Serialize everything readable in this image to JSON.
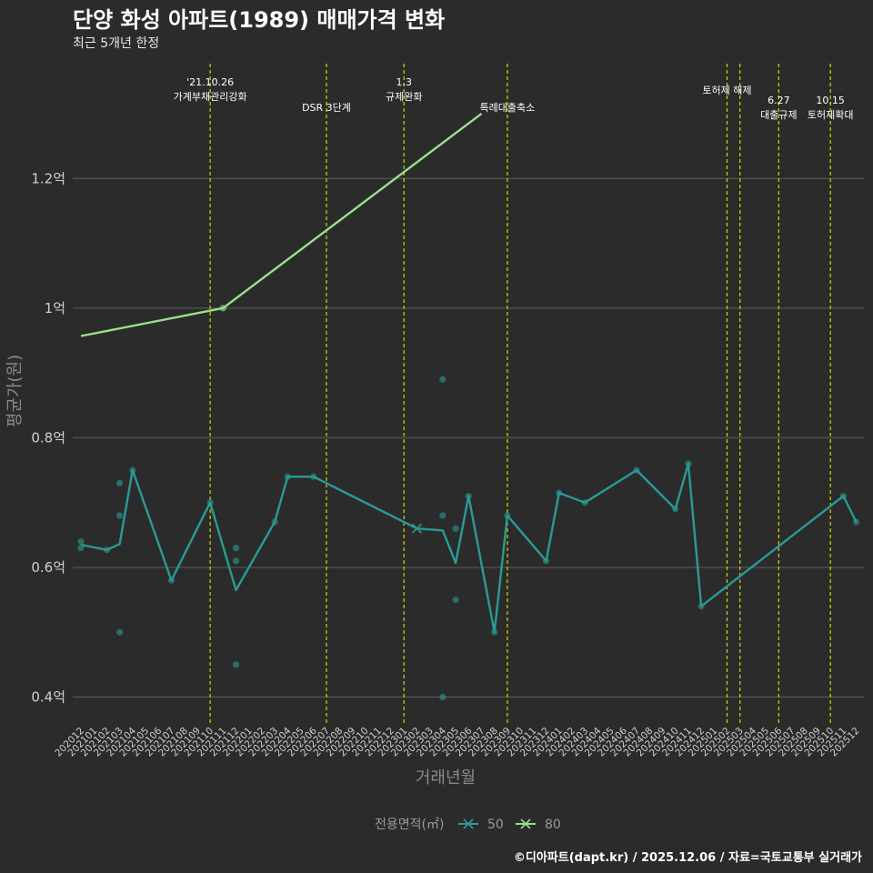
{
  "chart_data": {
    "type": "line",
    "title": "단양 화성 아파트(1989) 매매가격 변화",
    "subtitle": "최근 5개년 한정",
    "xlabel": "거래년월",
    "ylabel": "평균가(원)",
    "ylim": [
      0.36,
      1.38
    ],
    "yticks": [
      {
        "value": 0.4,
        "label": "0.4억"
      },
      {
        "value": 0.6,
        "label": "0.6억"
      },
      {
        "value": 0.8,
        "label": "0.8억"
      },
      {
        "value": 1.0,
        "label": "1억"
      },
      {
        "value": 1.2,
        "label": "1.2억"
      }
    ],
    "categories": [
      "202012",
      "202101",
      "202102",
      "202103",
      "202104",
      "202105",
      "202106",
      "202107",
      "202108",
      "202109",
      "202110",
      "202111",
      "202112",
      "202201",
      "202202",
      "202203",
      "202204",
      "202205",
      "202206",
      "202207",
      "202208",
      "202209",
      "202210",
      "202211",
      "202212",
      "202301",
      "202302",
      "202303",
      "202304",
      "202305",
      "202306",
      "202307",
      "202308",
      "202309",
      "202310",
      "202311",
      "202312",
      "202401",
      "202402",
      "202403",
      "202404",
      "202405",
      "202406",
      "202407",
      "202408",
      "202409",
      "202410",
      "202411",
      "202412",
      "202501",
      "202502",
      "202503",
      "202504",
      "202505",
      "202506",
      "202507",
      "202508",
      "202509",
      "202510",
      "202511",
      "202512"
    ],
    "series": [
      {
        "name": "50",
        "color": "#2a9a96",
        "line": [
          [
            "202012",
            0.635
          ],
          [
            "202102",
            0.627
          ],
          [
            "202103",
            0.636
          ],
          [
            "202104",
            0.75
          ],
          [
            "202107",
            0.58
          ],
          [
            "202110",
            0.7
          ],
          [
            "202112",
            0.565
          ],
          [
            "202203",
            0.67
          ],
          [
            "202204",
            0.74
          ],
          [
            "202206",
            0.74
          ],
          [
            "202302",
            0.66
          ],
          [
            "202304",
            0.657
          ],
          [
            "202305",
            0.607
          ],
          [
            "202306",
            0.71
          ],
          [
            "202308",
            0.5
          ],
          [
            "202309",
            0.68
          ],
          [
            "202312",
            0.61
          ],
          [
            "202401",
            0.715
          ],
          [
            "202403",
            0.7
          ],
          [
            "202407",
            0.75
          ],
          [
            "202410",
            0.69
          ],
          [
            "202411",
            0.76
          ],
          [
            "202412",
            0.54
          ],
          [
            "202511",
            0.71
          ],
          [
            "202512",
            0.67
          ]
        ],
        "points": [
          [
            "202012",
            0.64
          ],
          [
            "202012",
            0.63
          ],
          [
            "202102",
            0.627
          ],
          [
            "202103",
            0.73
          ],
          [
            "202103",
            0.68
          ],
          [
            "202103",
            0.5
          ],
          [
            "202104",
            0.75
          ],
          [
            "202107",
            0.58
          ],
          [
            "202110",
            0.7
          ],
          [
            "202112",
            0.63
          ],
          [
            "202112",
            0.61
          ],
          [
            "202112",
            0.45
          ],
          [
            "202203",
            0.67
          ],
          [
            "202204",
            0.74
          ],
          [
            "202206",
            0.74
          ],
          [
            "202304",
            0.89
          ],
          [
            "202304",
            0.68
          ],
          [
            "202304",
            0.4
          ],
          [
            "202305",
            0.66
          ],
          [
            "202305",
            0.55
          ],
          [
            "202306",
            0.71
          ],
          [
            "202308",
            0.5
          ],
          [
            "202309",
            0.68
          ],
          [
            "202312",
            0.61
          ],
          [
            "202401",
            0.715
          ],
          [
            "202403",
            0.7
          ],
          [
            "202407",
            0.75
          ],
          [
            "202410",
            0.69
          ],
          [
            "202411",
            0.76
          ],
          [
            "202412",
            0.54
          ],
          [
            "202511",
            0.71
          ],
          [
            "202512",
            0.67
          ]
        ],
        "cross": [
          "202302",
          0.66
        ]
      },
      {
        "name": "80",
        "color": "#98e08a",
        "line": [
          [
            "202012",
            0.957
          ],
          [
            "202111",
            1.0
          ],
          [
            "202307",
            1.3
          ]
        ],
        "points": [
          [
            "202111",
            1.0
          ]
        ]
      }
    ],
    "events": [
      {
        "at": "202110",
        "lines": [
          "'21.10.26",
          "가계부채관리강화"
        ],
        "row": 1
      },
      {
        "at": "202207",
        "lines": [
          "DSR 3단계"
        ],
        "row": 2
      },
      {
        "at": "202301",
        "lines": [
          "1.3",
          "규제완화"
        ],
        "row": 1
      },
      {
        "at": "202309",
        "lines": [
          "특례대출축소"
        ],
        "row": 2
      },
      {
        "at": "202502",
        "lines": [
          "토허제 해제"
        ],
        "row": 1
      },
      {
        "at": "202503",
        "lines": [],
        "row": 1
      },
      {
        "at": "202506",
        "lines": [
          "6.27",
          "대출규제"
        ],
        "row": 2
      },
      {
        "at": "202510",
        "lines": [
          "10.15",
          "토허제확대"
        ],
        "row": 2
      }
    ],
    "legend": {
      "title": "전용면적(㎡)",
      "position": "bottom",
      "items": [
        {
          "label": "50",
          "color": "#2a9a96"
        },
        {
          "label": "80",
          "color": "#98e08a"
        }
      ]
    },
    "grid": true,
    "event_line_color": "#d4d400"
  },
  "caption": "©디아파트(dapt.kr) / 2025.12.06 / 자료=국토교통부 실거래가"
}
